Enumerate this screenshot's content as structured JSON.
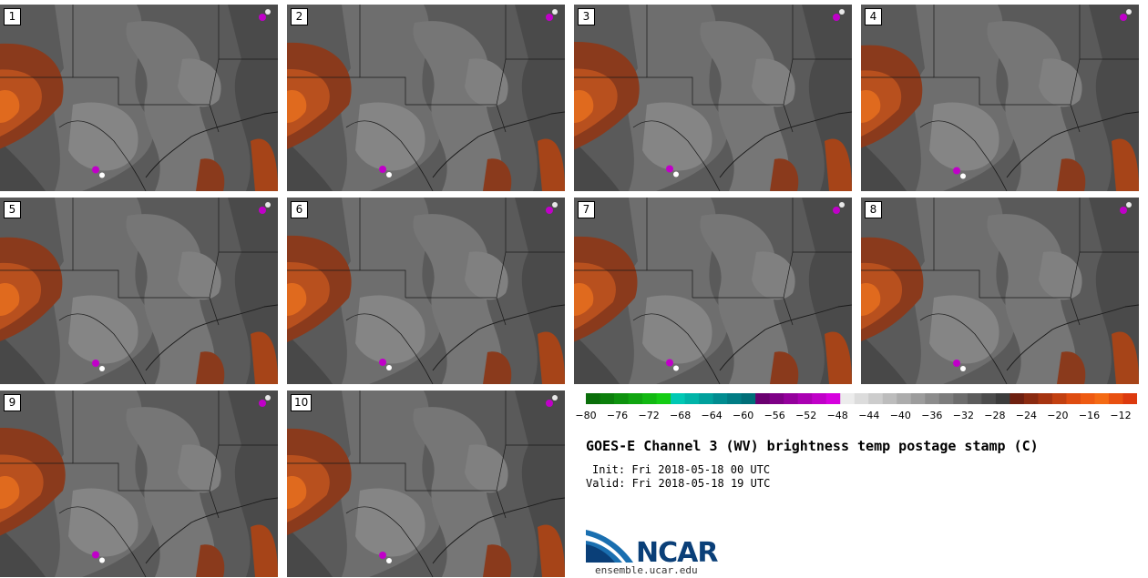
{
  "panels": [
    {
      "label": "1",
      "warm_level": 0.85
    },
    {
      "label": "2",
      "warm_level": 0.9
    },
    {
      "label": "3",
      "warm_level": 0.95
    },
    {
      "label": "4",
      "warm_level": 0.75
    },
    {
      "label": "5",
      "warm_level": 0.8
    },
    {
      "label": "6",
      "warm_level": 0.9
    },
    {
      "label": "7",
      "warm_level": 0.85
    },
    {
      "label": "8",
      "warm_level": 0.8
    },
    {
      "label": "9",
      "warm_level": 0.95
    },
    {
      "label": "10",
      "warm_level": 0.9
    }
  ],
  "colorbar": {
    "tick_labels": [
      "−80",
      "−76",
      "−72",
      "−68",
      "−64",
      "−60",
      "−56",
      "−52",
      "−48",
      "−44",
      "−40",
      "−36",
      "−32",
      "−28",
      "−24",
      "−20",
      "−16",
      "−12"
    ],
    "colors": [
      "#0a6e0a",
      "#0c7f0c",
      "#0e920e",
      "#10a510",
      "#12b812",
      "#14cc14",
      "#00c8b4",
      "#00b4a8",
      "#00a09c",
      "#008c90",
      "#007c84",
      "#006e78",
      "#6a0070",
      "#7e0086",
      "#94009c",
      "#aa00b2",
      "#c000c8",
      "#d600de",
      "#ececec",
      "#dcdcdc",
      "#cccccc",
      "#bcbcbc",
      "#acacac",
      "#9c9c9c",
      "#8c8c8c",
      "#7c7c7c",
      "#6c6c6c",
      "#5c5c5c",
      "#4c4c4c",
      "#3c3c3c",
      "#6e2010",
      "#8a2a10",
      "#a63410",
      "#c24010",
      "#de4c10",
      "#ee5a12",
      "#f46a14",
      "#e85010",
      "#dc3a0e"
    ]
  },
  "title": "GOES-E Channel 3 (WV) brightness temp postage stamp (C)",
  "init": "Init: Fri 2018-05-18 00 UTC",
  "valid": "Valid: Fri 2018-05-18 19 UTC",
  "logo": {
    "name": "NCAR",
    "url": "ensemble.ucar.edu",
    "icon": "ncar-swoosh-icon",
    "colors": {
      "blue": "#1a6fb0",
      "navy": "#0a3f78"
    }
  }
}
